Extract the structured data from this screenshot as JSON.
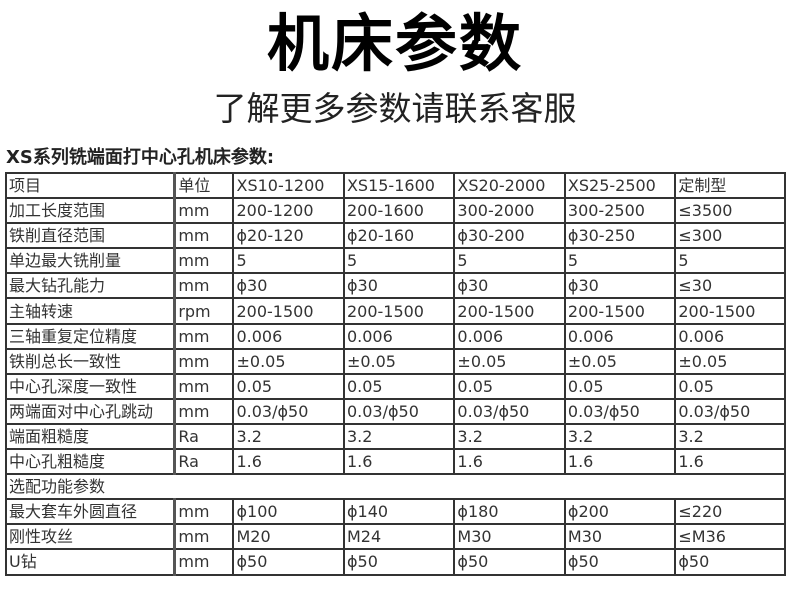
{
  "title": "机床参数",
  "subtitle": "了解更多参数请联系客服",
  "heading": "XS系列铣端面打中心孔机床参数:",
  "table": {
    "header": [
      "项目",
      "单位",
      "XS10-1200",
      "XS15-1600",
      "XS20-2000",
      "XS25-2500",
      "定制型"
    ],
    "rows": [
      [
        "加工长度范围",
        "mm",
        "200-1200",
        "200-1600",
        "300-2000",
        "300-2500",
        "≤3500"
      ],
      [
        "铁削直径范围",
        "mm",
        "ϕ20-120",
        "ϕ20-160",
        "ϕ30-200",
        "ϕ30-250",
        "≤300"
      ],
      [
        "单边最大铣削量",
        "mm",
        "5",
        "5",
        "5",
        "5",
        "5"
      ],
      [
        "最大钻孔能力",
        "mm",
        "ϕ30",
        "ϕ30",
        "ϕ30",
        "ϕ30",
        "≤30"
      ],
      [
        "主轴转速",
        "rpm",
        "200-1500",
        "200-1500",
        "200-1500",
        "200-1500",
        "200-1500"
      ],
      [
        "三轴重复定位精度",
        "mm",
        "0.006",
        "0.006",
        "0.006",
        "0.006",
        "0.006"
      ],
      [
        "铁削总长一致性",
        "mm",
        "±0.05",
        "±0.05",
        "±0.05",
        "±0.05",
        "±0.05"
      ],
      [
        "中心孔深度一致性",
        "mm",
        "0.05",
        "0.05",
        "0.05",
        "0.05",
        "0.05"
      ],
      [
        "两端面对中心孔跳动",
        "mm",
        "0.03/ϕ50",
        "0.03/ϕ50",
        "0.03/ϕ50",
        "0.03/ϕ50",
        "0.03/ϕ50"
      ],
      [
        "端面粗糙度",
        "Ra",
        "3.2",
        "3.2",
        "3.2",
        "3.2",
        "3.2"
      ],
      [
        "中心孔粗糙度",
        "Ra",
        "1.6",
        "1.6",
        "1.6",
        "1.6",
        "1.6"
      ]
    ],
    "section": "选配功能参数",
    "optional_rows": [
      [
        "最大套车外圆直径",
        "mm",
        "ϕ100",
        "ϕ140",
        "ϕ180",
        "ϕ200",
        "≤220"
      ],
      [
        "刚性攻丝",
        "mm",
        "M20",
        "M24",
        "M30",
        "M30",
        "≤M36"
      ],
      [
        "U钻",
        "mm",
        "ϕ50",
        "ϕ50",
        "ϕ50",
        "ϕ50",
        "ϕ50"
      ]
    ]
  }
}
